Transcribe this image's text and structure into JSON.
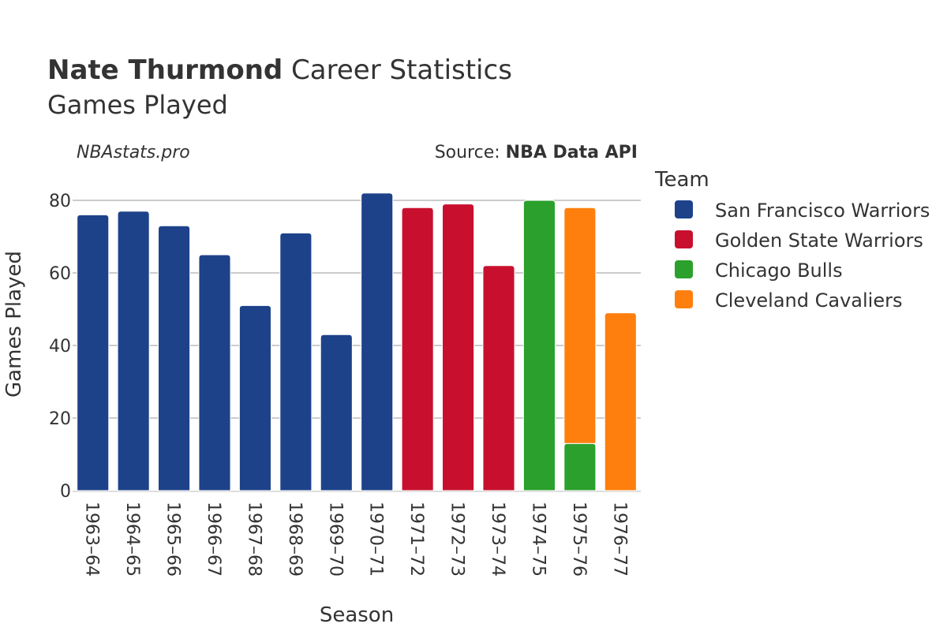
{
  "chart_data": {
    "type": "bar",
    "title": {
      "bold": "Nate Thurmond",
      "rest": " Career Statistics",
      "subtitle": "Games Played"
    },
    "watermark": "NBAstats.pro",
    "source_prefix": "Source: ",
    "source_name": "NBA Data API",
    "xlabel": "Season",
    "ylabel": "Games Played",
    "ylim": [
      0,
      85
    ],
    "yticks": [
      0,
      20,
      40,
      60,
      80
    ],
    "grid": true,
    "legend_title": "Team",
    "legend_placement": "right",
    "categories": [
      "1963–64",
      "1964–65",
      "1965–66",
      "1966–67",
      "1967–68",
      "1968–69",
      "1969–70",
      "1970–71",
      "1971–72",
      "1972–73",
      "1973–74",
      "1974–75",
      "1975–76",
      "1976–77"
    ],
    "series": [
      {
        "name": "San Francisco Warriors",
        "color": "#1d428a",
        "values": [
          76,
          77,
          73,
          65,
          51,
          71,
          43,
          82,
          0,
          0,
          0,
          0,
          0,
          0
        ]
      },
      {
        "name": "Golden State Warriors",
        "color": "#c8102e",
        "values": [
          0,
          0,
          0,
          0,
          0,
          0,
          0,
          0,
          78,
          79,
          62,
          0,
          0,
          0
        ]
      },
      {
        "name": "Chicago Bulls",
        "color": "#2ca02c",
        "values": [
          0,
          0,
          0,
          0,
          0,
          0,
          0,
          0,
          0,
          0,
          0,
          80,
          13,
          0
        ]
      },
      {
        "name": "Cleveland Cavaliers",
        "color": "#ff7f0e",
        "values": [
          0,
          0,
          0,
          0,
          0,
          0,
          0,
          0,
          0,
          0,
          0,
          0,
          65,
          49
        ]
      }
    ]
  }
}
